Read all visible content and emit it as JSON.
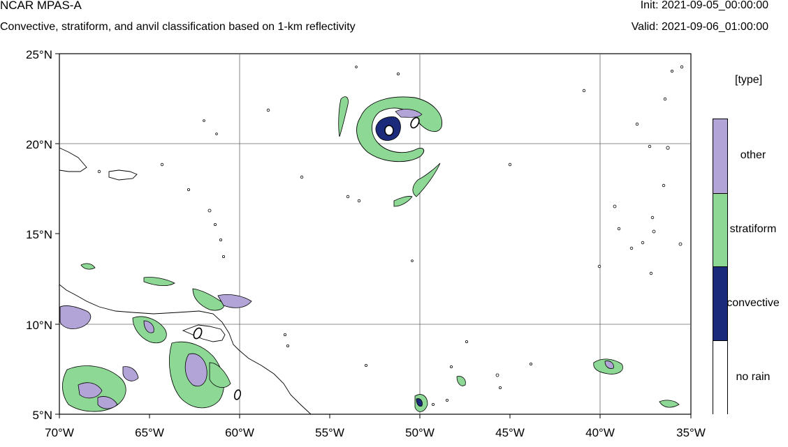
{
  "header": {
    "title": "NCAR MPAS-A",
    "subtitle": "Convective, stratiform, and anvil classification based on 1-km reflectivity",
    "init": "Init: 2021-09-05_00:00:00",
    "valid": "Valid: 2021-09-06_01:00:00"
  },
  "axes": {
    "lat_labels": [
      "25°N",
      "20°N",
      "15°N",
      "10°N",
      "5°N"
    ],
    "lon_labels": [
      "70°W",
      "65°W",
      "60°W",
      "55°W",
      "50°W",
      "45°W",
      "40°W",
      "35°W"
    ],
    "lat_range": [
      5,
      25
    ],
    "lon_range": [
      -70,
      -35
    ],
    "grid": true
  },
  "legend": {
    "title": "[type]",
    "entries": [
      {
        "label": "other",
        "color": "#b3a4d8"
      },
      {
        "label": "stratiform",
        "color": "#8dd895"
      },
      {
        "label": "convective",
        "color": "#1b2a7a"
      },
      {
        "label": "no rain",
        "color": "#ffffff"
      }
    ]
  },
  "colors": {
    "other": "#b3a4d8",
    "stratiform": "#8dd895",
    "convective": "#1b2a7a",
    "no_rain": "#ffffff",
    "contour": "#000000"
  }
}
